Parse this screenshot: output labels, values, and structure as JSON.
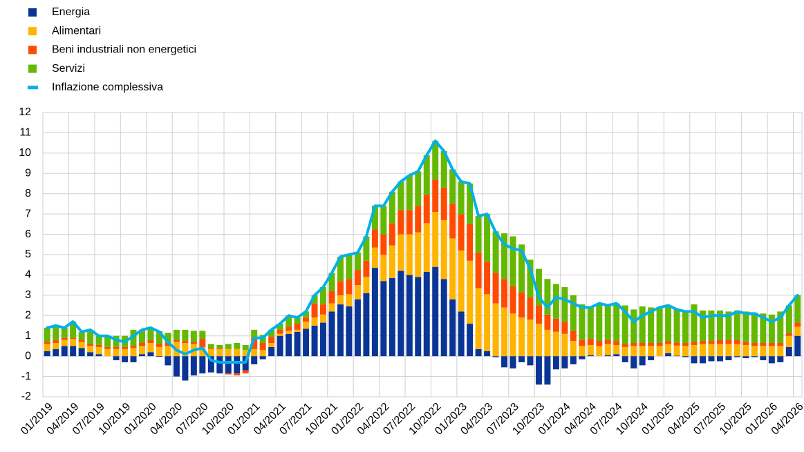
{
  "chart_data": {
    "type": "bar",
    "stacked": true,
    "categories": [
      "01/2019",
      null,
      null,
      "04/2019",
      null,
      null,
      "07/2019",
      null,
      null,
      "10/2019",
      null,
      null,
      "01/2020",
      null,
      null,
      "04/2020",
      null,
      null,
      "07/2020",
      null,
      null,
      "10/2020",
      null,
      null,
      "01/2021",
      null,
      null,
      "04/2021",
      null,
      null,
      "07/2021",
      null,
      null,
      "10/2021",
      null,
      null,
      "01/2022",
      null,
      null,
      "04/2022",
      null,
      null,
      "07/2022",
      null,
      null,
      "10/2022",
      null,
      null,
      "01/2023",
      null,
      null,
      "04/2023",
      null,
      null,
      "07/2023",
      null,
      null,
      "10/2023",
      null,
      null,
      "01/2024",
      null,
      null,
      "04/2024",
      null,
      null,
      "07/2024",
      null,
      null,
      "10/2024",
      null,
      null,
      "01/2025",
      null,
      null,
      "04/2025",
      null,
      null,
      "07/2025",
      null,
      null,
      "10/2025",
      null,
      null,
      "01/2026",
      null,
      null,
      "04/2026"
    ],
    "series": [
      {
        "name": "Energia",
        "type": "bar",
        "color": "#0a3596",
        "values": [
          0.25,
          0.35,
          0.5,
          0.5,
          0.4,
          0.2,
          0.1,
          0.0,
          -0.2,
          -0.3,
          -0.3,
          0.1,
          0.2,
          -0.03,
          -0.45,
          -1.0,
          -1.2,
          -0.95,
          -0.85,
          -0.8,
          -0.85,
          -0.85,
          -0.85,
          -0.7,
          -0.4,
          -0.15,
          0.45,
          1.0,
          1.1,
          1.2,
          1.35,
          1.5,
          1.65,
          2.2,
          2.55,
          2.45,
          2.8,
          3.1,
          4.35,
          3.7,
          3.85,
          4.2,
          4.0,
          3.9,
          4.15,
          4.4,
          3.8,
          2.8,
          2.2,
          1.6,
          0.35,
          0.25,
          -0.05,
          -0.55,
          -0.6,
          -0.3,
          -0.45,
          -1.4,
          -1.4,
          -0.65,
          -0.6,
          -0.4,
          -0.15,
          0.05,
          0.0,
          0.05,
          0.1,
          -0.3,
          -0.6,
          -0.45,
          -0.2,
          0.0,
          0.15,
          0.02,
          -0.05,
          -0.35,
          -0.35,
          -0.25,
          -0.25,
          -0.2,
          -0.05,
          -0.1,
          -0.05,
          -0.2,
          -0.35,
          -0.3,
          0.45,
          1.0
        ]
      },
      {
        "name": "Alimentari",
        "type": "bar",
        "color": "#ffb400",
        "values": [
          0.35,
          0.3,
          0.3,
          0.35,
          0.3,
          0.3,
          0.35,
          0.35,
          0.35,
          0.35,
          0.4,
          0.4,
          0.45,
          0.45,
          0.5,
          0.7,
          0.65,
          0.6,
          0.45,
          0.35,
          0.35,
          0.35,
          0.35,
          0.3,
          0.35,
          0.3,
          0.2,
          0.1,
          0.15,
          0.1,
          0.35,
          0.4,
          0.4,
          0.4,
          0.45,
          0.6,
          0.7,
          0.8,
          1.0,
          1.3,
          1.6,
          1.8,
          2.0,
          2.2,
          2.4,
          2.7,
          2.9,
          3.0,
          3.0,
          3.1,
          3.0,
          2.8,
          2.6,
          2.4,
          2.1,
          1.9,
          1.8,
          1.6,
          1.3,
          1.2,
          1.1,
          0.75,
          0.5,
          0.5,
          0.5,
          0.55,
          0.45,
          0.45,
          0.5,
          0.5,
          0.5,
          0.5,
          0.45,
          0.5,
          0.5,
          0.55,
          0.6,
          0.6,
          0.6,
          0.6,
          0.6,
          0.55,
          0.5,
          0.5,
          0.5,
          0.5,
          0.55,
          0.45
        ]
      },
      {
        "name": "Beni industriali non energetici",
        "type": "bar",
        "color": "#ff4b00",
        "values": [
          0.1,
          0.15,
          0.1,
          0.05,
          0.1,
          0.1,
          0.1,
          0.1,
          0.1,
          0.1,
          0.1,
          0.15,
          0.15,
          0.15,
          0.15,
          0.1,
          0.1,
          0.1,
          0.4,
          0.05,
          0.05,
          -0.05,
          -0.1,
          -0.15,
          0.55,
          0.35,
          0.3,
          0.2,
          0.2,
          0.3,
          0.2,
          0.7,
          0.5,
          0.6,
          0.7,
          0.75,
          0.75,
          0.8,
          0.9,
          1.0,
          1.1,
          1.2,
          1.2,
          1.3,
          1.4,
          1.6,
          1.6,
          1.7,
          1.8,
          1.8,
          1.75,
          1.6,
          1.5,
          1.4,
          1.35,
          1.25,
          1.1,
          0.9,
          0.75,
          0.65,
          0.6,
          0.5,
          0.3,
          0.3,
          0.25,
          0.2,
          0.2,
          0.15,
          0.15,
          0.15,
          0.15,
          0.15,
          0.15,
          0.15,
          0.15,
          0.15,
          0.15,
          0.15,
          0.2,
          0.2,
          0.2,
          0.15,
          0.15,
          0.15,
          0.15,
          0.15,
          0.15,
          0.2
        ]
      },
      {
        "name": "Servizi",
        "type": "bar",
        "color": "#65b800",
        "values": [
          0.7,
          0.7,
          0.5,
          0.8,
          0.4,
          0.7,
          0.45,
          0.55,
          0.55,
          0.55,
          0.8,
          0.65,
          0.6,
          0.63,
          0.5,
          0.5,
          0.55,
          0.55,
          0.4,
          0.2,
          0.15,
          0.25,
          0.3,
          0.25,
          0.4,
          0.4,
          0.35,
          0.3,
          0.55,
          0.3,
          0.3,
          0.4,
          0.85,
          0.9,
          1.2,
          1.2,
          0.85,
          1.2,
          1.15,
          1.4,
          1.55,
          1.4,
          1.7,
          1.7,
          1.95,
          1.9,
          1.8,
          1.7,
          1.6,
          2.0,
          1.8,
          2.35,
          2.05,
          2.25,
          2.45,
          2.35,
          1.85,
          1.8,
          1.75,
          1.7,
          1.7,
          1.75,
          1.75,
          1.55,
          1.85,
          1.7,
          1.85,
          1.9,
          1.65,
          1.8,
          1.75,
          1.75,
          1.75,
          1.63,
          1.6,
          1.85,
          1.5,
          1.5,
          1.45,
          1.4,
          1.45,
          1.5,
          1.5,
          1.45,
          1.4,
          1.55,
          1.35,
          1.35
        ]
      },
      {
        "name": "Inflazione complessiva",
        "type": "line",
        "color": "#00b1ea",
        "values": [
          1.4,
          1.5,
          1.4,
          1.7,
          1.2,
          1.3,
          1.0,
          1.0,
          0.8,
          0.7,
          1.0,
          1.3,
          1.4,
          1.2,
          0.7,
          0.3,
          0.1,
          0.3,
          0.4,
          -0.2,
          -0.3,
          -0.3,
          -0.3,
          -0.3,
          0.9,
          0.9,
          1.3,
          1.6,
          2.0,
          1.9,
          2.2,
          3.0,
          3.4,
          4.1,
          4.9,
          5.0,
          5.1,
          5.9,
          7.4,
          7.4,
          8.1,
          8.6,
          8.9,
          9.1,
          9.9,
          10.6,
          10.1,
          9.2,
          8.6,
          8.5,
          6.9,
          7.0,
          6.1,
          5.5,
          5.3,
          5.2,
          4.3,
          2.9,
          2.4,
          2.9,
          2.8,
          2.6,
          2.4,
          2.4,
          2.6,
          2.5,
          2.6,
          2.2,
          1.7,
          2.0,
          2.2,
          2.4,
          2.5,
          2.3,
          2.2,
          2.2,
          1.9,
          2.0,
          2.0,
          2.0,
          2.2,
          2.1,
          2.1,
          1.9,
          1.7,
          1.9,
          2.5,
          3.0
        ]
      }
    ],
    "ylim": [
      -2,
      12
    ],
    "yticks": [
      -2,
      -1,
      0,
      1,
      2,
      3,
      4,
      5,
      6,
      7,
      8,
      9,
      10,
      11,
      12
    ],
    "grid": true
  }
}
